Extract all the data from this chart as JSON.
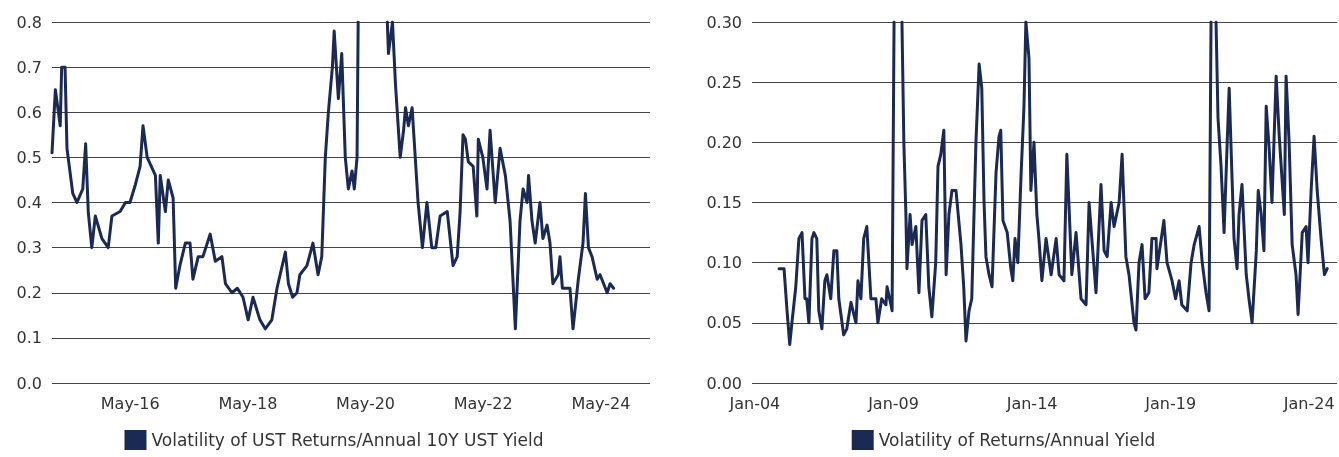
{
  "chart_data": [
    {
      "type": "line",
      "legend": "bottom",
      "grid": "y",
      "marker": "none",
      "line_style": "solid",
      "xlim": [
        "2015-01-01",
        "2025-03-02"
      ],
      "xticks": [
        {
          "value": "2016-05",
          "label": "May-16"
        },
        {
          "value": "2018-05",
          "label": "May-18"
        },
        {
          "value": "2020-05",
          "label": "May-20"
        },
        {
          "value": "2022-05",
          "label": "May-22"
        },
        {
          "value": "2024-05",
          "label": "May-24"
        }
      ],
      "ylim": [
        0,
        0.8
      ],
      "yticks": [
        {
          "value": 0,
          "label": "0.0"
        },
        0.1,
        0.2,
        0.3,
        0.4,
        0.5,
        0.6,
        0.7,
        0.8
      ],
      "series": [
        {
          "name": "Volatility of UST Returns/Annual 10Y UST Yield",
          "color": "#1b2a55",
          "x": [
            "2015-01-01",
            "2015-01-22",
            "2015-02-10",
            "2015-02-21",
            "2015-03-02",
            "2015-03-23",
            "2015-04-04",
            "2015-05-10",
            "2015-06-05",
            "2015-07-11",
            "2015-07-29",
            "2015-08-14",
            "2015-09-05",
            "2015-09-27",
            "2015-11-07",
            "2015-12-16",
            "2016-01-08",
            "2016-02-28",
            "2016-04-01",
            "2016-04-29",
            "2016-06-02",
            "2016-07-01",
            "2016-07-19",
            "2016-08-14",
            "2016-10-04",
            "2016-10-22",
            "2016-11-03",
            "2016-12-05",
            "2016-12-23",
            "2017-01-22",
            "2017-02-07",
            "2017-03-05",
            "2017-04-08",
            "2017-05-07",
            "2017-05-25",
            "2017-06-27",
            "2017-07-26",
            "2017-09-09",
            "2017-10-11",
            "2017-11-21",
            "2017-12-13",
            "2018-01-22",
            "2018-02-25",
            "2018-04-01",
            "2018-05-03",
            "2018-06-02",
            "2018-07-15",
            "2018-08-17",
            "2018-09-27",
            "2018-10-29",
            "2018-12-20",
            "2019-01-08",
            "2019-02-03",
            "2019-03-02",
            "2019-03-20",
            "2019-05-03",
            "2019-06-09",
            "2019-07-11",
            "2019-08-03",
            "2019-08-25",
            "2019-09-13",
            "2019-10-08",
            "2019-10-19",
            "2019-11-14",
            "2019-12-05",
            "2019-12-27",
            "2020-01-15",
            "2020-02-07",
            "2020-02-21",
            "2020-03-09",
            "2020-03-16",
            "2020-07-01",
            "2020-09-13",
            "2020-09-20",
            "2020-10-15",
            "2020-11-03",
            "2020-12-02",
            "2020-12-23",
            "2021-01-04",
            "2021-01-22",
            "2021-02-14",
            "2021-03-23",
            "2021-04-19",
            "2021-05-17",
            "2021-06-16",
            "2021-07-11",
            "2021-08-07",
            "2021-09-20",
            "2021-10-26",
            "2021-11-21",
            "2021-12-09",
            "2021-12-27",
            "2022-01-11",
            "2022-01-29",
            "2022-02-28",
            "2022-03-23",
            "2022-04-01",
            "2022-04-29",
            "2022-05-25",
            "2022-06-13",
            "2022-07-15",
            "2022-08-14",
            "2022-09-16",
            "2022-10-15",
            "2022-11-17",
            "2022-12-16",
            "2023-01-04",
            "2023-01-29",
            "2023-02-07",
            "2023-02-28",
            "2023-03-20",
            "2023-04-19",
            "2023-05-07",
            "2023-06-02",
            "2023-06-20",
            "2023-07-08",
            "2023-08-10",
            "2023-08-21",
            "2023-09-05",
            "2023-10-22",
            "2023-11-10",
            "2023-12-13",
            "2024-01-11",
            "2024-01-26",
            "2024-02-14",
            "2024-03-07",
            "2024-04-08",
            "2024-04-26",
            "2024-06-09",
            "2024-06-27",
            "2024-07-19"
          ],
          "values": [
            0.51,
            0.65,
            0.6,
            0.57,
            0.7,
            0.7,
            0.52,
            0.42,
            0.4,
            0.43,
            0.53,
            0.38,
            0.3,
            0.37,
            0.32,
            0.3,
            0.37,
            0.38,
            0.4,
            0.4,
            0.44,
            0.48,
            0.57,
            0.5,
            0.46,
            0.31,
            0.46,
            0.38,
            0.45,
            0.41,
            0.21,
            0.26,
            0.31,
            0.31,
            0.23,
            0.28,
            0.28,
            0.33,
            0.27,
            0.28,
            0.22,
            0.2,
            0.21,
            0.19,
            0.14,
            0.19,
            0.14,
            0.12,
            0.14,
            0.21,
            0.29,
            0.22,
            0.19,
            0.2,
            0.24,
            0.26,
            0.31,
            0.24,
            0.28,
            0.5,
            0.6,
            0.7,
            0.78,
            0.63,
            0.73,
            0.5,
            0.43,
            0.47,
            0.43,
            0.5,
            0.8,
            null,
            0.8,
            0.73,
            0.8,
            0.66,
            0.5,
            0.56,
            0.61,
            0.57,
            0.61,
            0.4,
            0.3,
            0.4,
            0.3,
            0.3,
            0.37,
            0.38,
            0.26,
            0.28,
            0.38,
            0.55,
            0.54,
            0.49,
            0.48,
            0.37,
            0.54,
            0.5,
            0.43,
            0.56,
            0.4,
            0.52,
            0.46,
            0.36,
            0.12,
            0.36,
            0.43,
            0.4,
            0.46,
            0.36,
            0.31,
            0.4,
            0.32,
            0.35,
            0.31,
            0.22,
            0.24,
            0.28,
            0.21,
            0.21,
            0.12,
            0.23,
            0.31,
            0.42,
            0.3,
            0.28,
            0.23,
            0.24,
            0.2,
            0.22,
            0.21
          ]
        }
      ]
    },
    {
      "type": "line",
      "legend": "bottom",
      "grid": "y",
      "marker": "none",
      "line_style": "solid",
      "xlim": [
        "2003-11-24",
        "2025-01-01"
      ],
      "xticks": [
        {
          "value": "2004-01",
          "label": "Jan-04"
        },
        {
          "value": "2009-01",
          "label": "Jan-09"
        },
        {
          "value": "2014-01",
          "label": "Jan-14"
        },
        {
          "value": "2019-01",
          "label": "Jan-19"
        },
        {
          "value": "2024-01",
          "label": "Jan-24"
        }
      ],
      "ylim": [
        0,
        0.3
      ],
      "yticks": [
        {
          "value": 0,
          "label": "0.00"
        },
        {
          "value": 0.05,
          "label": "0.05"
        },
        {
          "value": 0.1,
          "label": "0.10"
        },
        {
          "value": 0.15,
          "label": "0.15"
        },
        {
          "value": 0.2,
          "label": "0.20"
        },
        {
          "value": 0.25,
          "label": "0.25"
        },
        {
          "value": 0.3,
          "label": "0.30"
        }
      ],
      "series": [
        {
          "name": "Volatility of Returns/Annual Yield",
          "color": "#1b2a55",
          "x": [
            "2004-11-14",
            "2005-01-19",
            "2005-02-28",
            "2005-04-04",
            "2005-05-03",
            "2005-06-23",
            "2005-08-03",
            "2005-09-13",
            "2005-10-22",
            "2005-11-14",
            "2005-12-13",
            "2006-01-22",
            "2006-02-17",
            "2006-03-27",
            "2006-04-22",
            "2006-06-02",
            "2006-07-11",
            "2006-08-07",
            "2006-09-27",
            "2006-11-07",
            "2006-12-16",
            "2007-01-11",
            "2007-03-16",
            "2007-04-26",
            "2007-06-20",
            "2007-08-25",
            "2007-09-20",
            "2007-10-29",
            "2007-12-05",
            "2008-01-15",
            "2008-03-09",
            "2008-05-14",
            "2008-06-09",
            "2008-07-29",
            "2008-09-23",
            "2008-10-08",
            "2008-11-28",
            "2008-12-13",
            "2009-01-08",
            "2009-03-07",
            "2009-04-22",
            "2009-05-17",
            "2009-06-13",
            "2009-06-27",
            "2009-08-07",
            "2009-09-02",
            "2009-10-22",
            "2009-12-02",
            "2010-01-11",
            "2010-03-02",
            "2010-04-11",
            "2010-05-21",
            "2010-07-11",
            "2010-08-10",
            "2010-09-16",
            "2010-10-26",
            "2010-11-25",
            "2011-01-01",
            "2011-02-10",
            "2011-04-04",
            "2011-06-09",
            "2011-07-15",
            "2011-08-14",
            "2011-09-23",
            "2011-10-29",
            "2011-12-23",
            "2012-02-03",
            "2012-03-09",
            "2012-04-08",
            "2012-05-03",
            "2012-06-13",
            "2012-07-22",
            "2012-09-13",
            "2012-10-22",
            "2012-11-14",
            "2012-12-13",
            "2013-02-07",
            "2013-03-27",
            "2013-04-22",
            "2013-05-21",
            "2013-06-27",
            "2013-08-07",
            "2013-09-16",
            "2013-10-11",
            "2013-11-21",
            "2013-12-16",
            "2014-01-26",
            "2014-03-05",
            "2014-04-01",
            "2014-05-10",
            "2014-07-04",
            "2014-09-09",
            "2014-11-14",
            "2014-12-23",
            "2015-02-25",
            "2015-04-04",
            "2015-06-09",
            "2015-08-03",
            "2015-10-08",
            "2015-12-13",
            "2016-01-22",
            "2016-04-22",
            "2016-06-27",
            "2016-08-07",
            "2016-09-16",
            "2016-11-07",
            "2016-12-16",
            "2017-02-21",
            "2017-04-01",
            "2017-05-21",
            "2017-07-01",
            "2017-09-05",
            "2017-10-01",
            "2017-11-10",
            "2017-12-20",
            "2018-01-29",
            "2018-03-20",
            "2018-04-29",
            "2018-06-23",
            "2018-07-04",
            "2018-10-04",
            "2018-11-14",
            "2019-01-19",
            "2019-03-07",
            "2019-04-22",
            "2019-05-28",
            "2019-08-07",
            "2019-09-27",
            "2019-11-07",
            "2020-01-11",
            "2020-02-21",
            "2020-04-11",
            "2020-05-21",
            "2020-06-16",
            "2020-08-07",
            "2020-08-21",
            "2020-09-16",
            "2020-10-26",
            "2020-12-05",
            "2021-01-15",
            "2021-02-10",
            "2021-03-20",
            "2021-04-15",
            "2021-05-25",
            "2021-06-20",
            "2021-07-29",
            "2021-09-23",
            "2021-10-29",
            "2021-12-09",
            "2022-02-03",
            "2022-02-28",
            "2022-04-08",
            "2022-05-14",
            "2022-06-13",
            "2022-07-22",
            "2022-08-28",
            "2022-10-22",
            "2022-12-02",
            "2023-02-07",
            "2023-03-02",
            "2023-04-11",
            "2023-05-21",
            "2023-07-11",
            "2023-08-07",
            "2023-10-01",
            "2023-11-21",
            "2023-12-16",
            "2024-01-26",
            "2024-03-05",
            "2024-04-15",
            "2024-06-05",
            "2024-07-19",
            "2024-08-25"
          ],
          "values": [
            0.095,
            0.095,
            0.06,
            0.032,
            0.05,
            0.08,
            0.12,
            0.125,
            0.07,
            0.07,
            0.05,
            0.12,
            0.125,
            0.12,
            0.06,
            0.045,
            0.085,
            0.09,
            0.07,
            0.11,
            0.11,
            0.07,
            0.04,
            0.045,
            0.067,
            0.05,
            0.085,
            0.07,
            0.12,
            0.13,
            0.07,
            0.07,
            0.05,
            0.07,
            0.065,
            0.08,
            0.065,
            0.06,
            0.3,
            null,
            0.3,
            0.2,
            0.14,
            0.095,
            0.14,
            0.115,
            0.13,
            0.075,
            0.135,
            0.14,
            0.08,
            0.055,
            0.1,
            0.18,
            0.19,
            0.21,
            0.09,
            0.14,
            0.16,
            0.16,
            0.115,
            0.08,
            0.035,
            0.06,
            0.07,
            0.2,
            0.265,
            0.245,
            0.15,
            0.105,
            0.09,
            0.08,
            0.175,
            0.205,
            0.21,
            0.135,
            0.125,
            0.095,
            0.085,
            0.12,
            0.1,
            0.17,
            0.23,
            0.3,
            0.27,
            0.16,
            0.2,
            0.14,
            0.12,
            0.085,
            0.12,
            0.09,
            0.12,
            0.09,
            0.085,
            0.19,
            0.09,
            0.125,
            0.07,
            0.065,
            0.15,
            0.075,
            0.165,
            0.11,
            0.105,
            0.15,
            0.13,
            0.15,
            0.19,
            0.105,
            0.09,
            0.05,
            0.044,
            0.1,
            0.115,
            0.07,
            0.075,
            0.12,
            0.12,
            0.095,
            0.135,
            0.1,
            0.085,
            0.07,
            0.085,
            0.065,
            0.06,
            0.1,
            0.115,
            0.13,
            0.1,
            0.075,
            0.06,
            0.3,
            null,
            0.3,
            0.22,
            0.18,
            0.125,
            0.2,
            0.245,
            0.17,
            0.12,
            0.095,
            0.14,
            0.165,
            0.09,
            0.07,
            0.05,
            0.11,
            0.16,
            0.14,
            0.11,
            0.23,
            0.195,
            0.15,
            0.255,
            0.205,
            0.14,
            0.255,
            0.2,
            0.115,
            0.09,
            0.057,
            0.125,
            0.13,
            0.1,
            0.16,
            0.205,
            0.16,
            0.12,
            0.09,
            0.095
          ]
        }
      ]
    }
  ]
}
